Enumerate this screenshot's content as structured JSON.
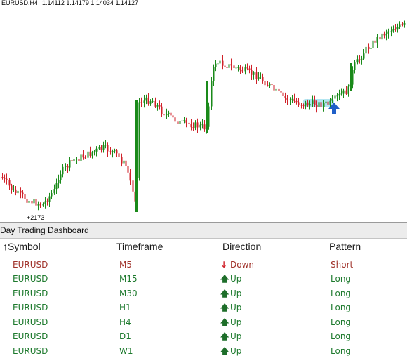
{
  "chart": {
    "symbol": "EURUSD,H4",
    "ohlc": "1.14112 1.14179 1.14034 1.14127",
    "low_label": "+2173",
    "colors": {
      "bull": "#1a8a1a",
      "bear": "#d0222a",
      "signal_arrow": "#1f5fc8",
      "highlight": "#7fd6e8"
    }
  },
  "dashboard": {
    "title": "Day Trading Dashboard",
    "headers": {
      "symbol": "Symbol",
      "sort_icon": "↑",
      "timeframe": "Timeframe",
      "direction": "Direction",
      "pattern": "Pattern"
    },
    "rows": [
      {
        "symbol": "EURUSD",
        "timeframe": "M5",
        "direction": "Down",
        "arrow": "↓",
        "pattern": "Short",
        "color": "#a0322a",
        "arrow_color": "#d0222a"
      },
      {
        "symbol": "EURUSD",
        "timeframe": "M15",
        "direction": "Up",
        "arrow": "🡅",
        "pattern": "Long",
        "color": "#1e7a2e",
        "arrow_color": "#1e6e2a"
      },
      {
        "symbol": "EURUSD",
        "timeframe": "M30",
        "direction": "Up",
        "arrow": "🡅",
        "pattern": "Long",
        "color": "#1e7a2e",
        "arrow_color": "#1e6e2a"
      },
      {
        "symbol": "EURUSD",
        "timeframe": "H1",
        "direction": "Up",
        "arrow": "🡅",
        "pattern": "Long",
        "color": "#1e7a2e",
        "arrow_color": "#1e6e2a"
      },
      {
        "symbol": "EURUSD",
        "timeframe": "H4",
        "direction": "Up",
        "arrow": "🡅",
        "pattern": "Long",
        "color": "#1e7a2e",
        "arrow_color": "#1e6e2a"
      },
      {
        "symbol": "EURUSD",
        "timeframe": "D1",
        "direction": "Up",
        "arrow": "🡅",
        "pattern": "Long",
        "color": "#1e7a2e",
        "arrow_color": "#1e6e2a"
      },
      {
        "symbol": "EURUSD",
        "timeframe": "W1",
        "direction": "Up",
        "arrow": "🡅",
        "pattern": "Long",
        "color": "#1e7a2e",
        "arrow_color": "#1e6e2a"
      }
    ]
  }
}
